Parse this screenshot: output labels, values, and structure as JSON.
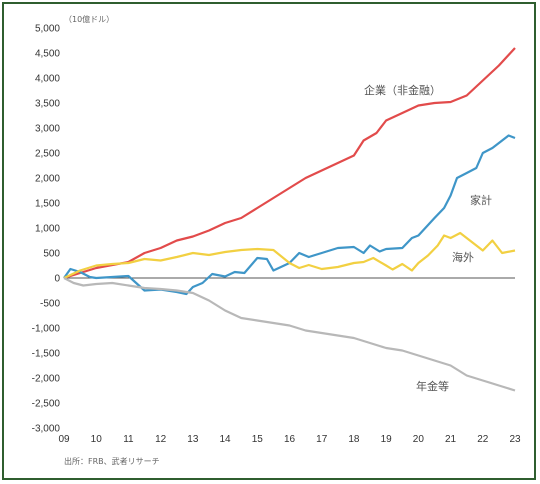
{
  "chart_data": {
    "type": "line",
    "unit_label": "（10億ドル）",
    "source": "出所：FRB、武者リサーチ",
    "xlim": [
      2009,
      2023
    ],
    "ylim": [
      -3000,
      5000
    ],
    "x_ticks": [
      "09",
      "10",
      "11",
      "12",
      "13",
      "14",
      "15",
      "16",
      "17",
      "18",
      "19",
      "20",
      "21",
      "22",
      "23"
    ],
    "y_ticks": [
      "5,000",
      "4,500",
      "4,000",
      "3,500",
      "3,000",
      "2,500",
      "2,000",
      "1,500",
      "1,000",
      "500",
      "0",
      "-500",
      "-1,000",
      "-1,500",
      "-2,000",
      "-2,500",
      "-3,000"
    ],
    "series": [
      {
        "name": "企業（非金融）",
        "color": "#e24b4b",
        "points": [
          [
            2009,
            0
          ],
          [
            2009.5,
            100
          ],
          [
            2010,
            200
          ],
          [
            2010.5,
            260
          ],
          [
            2011,
            320
          ],
          [
            2011.5,
            500
          ],
          [
            2012,
            600
          ],
          [
            2012.5,
            750
          ],
          [
            2013,
            830
          ],
          [
            2013.5,
            950
          ],
          [
            2014,
            1100
          ],
          [
            2014.5,
            1200
          ],
          [
            2015,
            1400
          ],
          [
            2015.5,
            1600
          ],
          [
            2016,
            1800
          ],
          [
            2016.5,
            2000
          ],
          [
            2017,
            2150
          ],
          [
            2017.5,
            2300
          ],
          [
            2018,
            2450
          ],
          [
            2018.3,
            2750
          ],
          [
            2018.7,
            2900
          ],
          [
            2019,
            3150
          ],
          [
            2019.5,
            3300
          ],
          [
            2020,
            3450
          ],
          [
            2020.5,
            3500
          ],
          [
            2021,
            3520
          ],
          [
            2021.5,
            3650
          ],
          [
            2022,
            3950
          ],
          [
            2022.5,
            4250
          ],
          [
            2023,
            4600
          ]
        ]
      },
      {
        "name": "家計",
        "color": "#3f96c8",
        "points": [
          [
            2009,
            0
          ],
          [
            2009.2,
            180
          ],
          [
            2009.5,
            120
          ],
          [
            2009.8,
            20
          ],
          [
            2010,
            0
          ],
          [
            2010.5,
            20
          ],
          [
            2011,
            40
          ],
          [
            2011.5,
            -250
          ],
          [
            2012,
            -230
          ],
          [
            2012.5,
            -280
          ],
          [
            2012.8,
            -320
          ],
          [
            2013,
            -180
          ],
          [
            2013.3,
            -100
          ],
          [
            2013.6,
            80
          ],
          [
            2014,
            30
          ],
          [
            2014.3,
            120
          ],
          [
            2014.6,
            100
          ],
          [
            2015,
            400
          ],
          [
            2015.3,
            380
          ],
          [
            2015.5,
            150
          ],
          [
            2016,
            300
          ],
          [
            2016.3,
            500
          ],
          [
            2016.6,
            420
          ],
          [
            2017,
            500
          ],
          [
            2017.5,
            600
          ],
          [
            2018,
            620
          ],
          [
            2018.3,
            500
          ],
          [
            2018.5,
            650
          ],
          [
            2018.8,
            530
          ],
          [
            2019,
            580
          ],
          [
            2019.5,
            600
          ],
          [
            2019.8,
            800
          ],
          [
            2020,
            850
          ],
          [
            2020.5,
            1200
          ],
          [
            2020.8,
            1400
          ],
          [
            2021,
            1650
          ],
          [
            2021.2,
            2000
          ],
          [
            2021.5,
            2100
          ],
          [
            2021.8,
            2200
          ],
          [
            2022,
            2500
          ],
          [
            2022.3,
            2600
          ],
          [
            2022.5,
            2700
          ],
          [
            2022.8,
            2850
          ],
          [
            2023,
            2800
          ]
        ]
      },
      {
        "name": "海外",
        "color": "#f2d042",
        "points": [
          [
            2009,
            0
          ],
          [
            2009.5,
            150
          ],
          [
            2010,
            250
          ],
          [
            2010.5,
            280
          ],
          [
            2011,
            300
          ],
          [
            2011.5,
            380
          ],
          [
            2012,
            350
          ],
          [
            2012.5,
            420
          ],
          [
            2013,
            500
          ],
          [
            2013.5,
            460
          ],
          [
            2014,
            520
          ],
          [
            2014.5,
            560
          ],
          [
            2015,
            580
          ],
          [
            2015.5,
            560
          ],
          [
            2016,
            300
          ],
          [
            2016.3,
            200
          ],
          [
            2016.6,
            260
          ],
          [
            2017,
            180
          ],
          [
            2017.5,
            220
          ],
          [
            2018,
            300
          ],
          [
            2018.3,
            320
          ],
          [
            2018.6,
            400
          ],
          [
            2019,
            250
          ],
          [
            2019.2,
            170
          ],
          [
            2019.5,
            280
          ],
          [
            2019.8,
            150
          ],
          [
            2020,
            300
          ],
          [
            2020.3,
            450
          ],
          [
            2020.6,
            650
          ],
          [
            2020.8,
            850
          ],
          [
            2021,
            800
          ],
          [
            2021.3,
            900
          ],
          [
            2021.6,
            750
          ],
          [
            2022,
            550
          ],
          [
            2022.3,
            750
          ],
          [
            2022.6,
            500
          ],
          [
            2023,
            550
          ]
        ]
      },
      {
        "name": "年金等",
        "color": "#b8b8b8",
        "points": [
          [
            2009,
            0
          ],
          [
            2009.3,
            -100
          ],
          [
            2009.6,
            -150
          ],
          [
            2010,
            -120
          ],
          [
            2010.5,
            -100
          ],
          [
            2011,
            -150
          ],
          [
            2011.5,
            -200
          ],
          [
            2012,
            -220
          ],
          [
            2012.5,
            -250
          ],
          [
            2013,
            -300
          ],
          [
            2013.5,
            -450
          ],
          [
            2014,
            -650
          ],
          [
            2014.5,
            -800
          ],
          [
            2015,
            -850
          ],
          [
            2015.5,
            -900
          ],
          [
            2016,
            -950
          ],
          [
            2016.5,
            -1050
          ],
          [
            2017,
            -1100
          ],
          [
            2017.5,
            -1150
          ],
          [
            2018,
            -1200
          ],
          [
            2018.5,
            -1300
          ],
          [
            2019,
            -1400
          ],
          [
            2019.5,
            -1450
          ],
          [
            2020,
            -1550
          ],
          [
            2020.5,
            -1650
          ],
          [
            2021,
            -1750
          ],
          [
            2021.5,
            -1950
          ],
          [
            2022,
            -2050
          ],
          [
            2022.5,
            -2150
          ],
          [
            2023,
            -2250
          ]
        ]
      }
    ],
    "labels": {
      "corporate": "企業（非金融）",
      "household": "家計",
      "foreign": "海外",
      "pension": "年金等"
    },
    "grid": false
  }
}
